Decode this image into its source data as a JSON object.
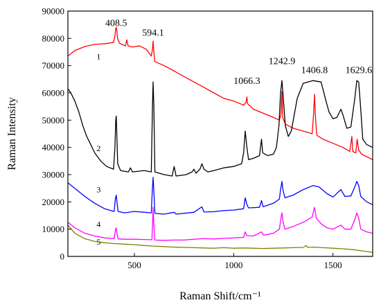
{
  "chart_data": {
    "type": "line",
    "title": "",
    "xlabel": "Raman Shift/cm⁻¹",
    "ylabel": "Raman Intensity",
    "xlim": [
      165,
      1700
    ],
    "ylim": [
      0,
      90000
    ],
    "x_ticks": [
      500,
      1000,
      1500
    ],
    "x_tick_labels": [
      "500",
      "1000",
      "1500"
    ],
    "y_ticks": [
      0,
      10000,
      20000,
      30000,
      40000,
      50000,
      60000,
      70000,
      80000,
      90000
    ],
    "y_tick_labels": [
      "0",
      "10000",
      "20000",
      "30000",
      "40000",
      "50000",
      "60000",
      "70000",
      "80000",
      "90000"
    ],
    "grid": false,
    "legend": "none",
    "peak_labels": [
      {
        "text": "408.5",
        "x": 408.5,
        "y": 84500
      },
      {
        "text": "594.1",
        "x": 594.1,
        "y": 81000
      },
      {
        "text": "1066.3",
        "x": 1066.3,
        "y": 63300
      },
      {
        "text": "1242.9",
        "x": 1242.9,
        "y": 70500
      },
      {
        "text": "1406.8",
        "x": 1406.8,
        "y": 67200
      },
      {
        "text": "1629.6",
        "x": 1629.6,
        "y": 67200
      }
    ],
    "series": [
      {
        "label": "1",
        "color": "#ff0000",
        "label_pos": {
          "x": 320,
          "y": 72300
        },
        "points": [
          [
            165,
            73500
          ],
          [
            200,
            75500
          ],
          [
            250,
            77000
          ],
          [
            300,
            77800
          ],
          [
            350,
            78000
          ],
          [
            395,
            78500
          ],
          [
            402,
            81000
          ],
          [
            406,
            83500
          ],
          [
            408.5,
            84000
          ],
          [
            411,
            83000
          ],
          [
            415,
            80000
          ],
          [
            425,
            78200
          ],
          [
            455,
            77200
          ],
          [
            462,
            79500
          ],
          [
            468,
            77200
          ],
          [
            490,
            76800
          ],
          [
            525,
            77200
          ],
          [
            560,
            76000
          ],
          [
            585,
            73500
          ],
          [
            591,
            76000
          ],
          [
            594.1,
            79000
          ],
          [
            597,
            76000
          ],
          [
            602,
            71500
          ],
          [
            650,
            70000
          ],
          [
            700,
            68000
          ],
          [
            750,
            66000
          ],
          [
            800,
            64000
          ],
          [
            850,
            62000
          ],
          [
            900,
            60000
          ],
          [
            950,
            58000
          ],
          [
            1000,
            57000
          ],
          [
            1050,
            55500
          ],
          [
            1062,
            56500
          ],
          [
            1066.3,
            58500
          ],
          [
            1070,
            56000
          ],
          [
            1100,
            54000
          ],
          [
            1150,
            52500
          ],
          [
            1200,
            51000
          ],
          [
            1230,
            50000
          ],
          [
            1238,
            52000
          ],
          [
            1242.9,
            60500
          ],
          [
            1247,
            51000
          ],
          [
            1260,
            48500
          ],
          [
            1300,
            47000
          ],
          [
            1350,
            46000
          ],
          [
            1395,
            45000
          ],
          [
            1402,
            52000
          ],
          [
            1406.8,
            59500
          ],
          [
            1411,
            52000
          ],
          [
            1418,
            44500
          ],
          [
            1450,
            43000
          ],
          [
            1500,
            41500
          ],
          [
            1550,
            40000
          ],
          [
            1585,
            38500
          ],
          [
            1595,
            44000
          ],
          [
            1600,
            38500
          ],
          [
            1615,
            38000
          ],
          [
            1622,
            43000
          ],
          [
            1629.6,
            39000
          ],
          [
            1645,
            37500
          ],
          [
            1700,
            35500
          ]
        ]
      },
      {
        "label": "2",
        "color": "#000000",
        "label_pos": {
          "x": 320,
          "y": 38600
        },
        "points": [
          [
            165,
            61500
          ],
          [
            180,
            60000
          ],
          [
            200,
            57000
          ],
          [
            220,
            53000
          ],
          [
            240,
            48000
          ],
          [
            260,
            44000
          ],
          [
            280,
            41000
          ],
          [
            300,
            38000
          ],
          [
            330,
            35000
          ],
          [
            360,
            33000
          ],
          [
            395,
            32000
          ],
          [
            402,
            40000
          ],
          [
            406,
            50000
          ],
          [
            408.5,
            51500
          ],
          [
            411,
            46000
          ],
          [
            416,
            34000
          ],
          [
            430,
            31500
          ],
          [
            470,
            31000
          ],
          [
            480,
            32500
          ],
          [
            490,
            31000
          ],
          [
            550,
            31500
          ],
          [
            585,
            31000
          ],
          [
            591,
            55000
          ],
          [
            594.1,
            64000
          ],
          [
            598,
            55000
          ],
          [
            603,
            31000
          ],
          [
            650,
            30000
          ],
          [
            690,
            29500
          ],
          [
            700,
            33000
          ],
          [
            710,
            29500
          ],
          [
            760,
            30000
          ],
          [
            790,
            31000
          ],
          [
            800,
            32000
          ],
          [
            810,
            30500
          ],
          [
            830,
            32000
          ],
          [
            840,
            34000
          ],
          [
            850,
            32000
          ],
          [
            870,
            31000
          ],
          [
            900,
            31500
          ],
          [
            950,
            32500
          ],
          [
            1000,
            33000
          ],
          [
            1040,
            34000
          ],
          [
            1050,
            38000
          ],
          [
            1058,
            46000
          ],
          [
            1066.3,
            40000
          ],
          [
            1075,
            35500
          ],
          [
            1100,
            36000
          ],
          [
            1130,
            37000
          ],
          [
            1140,
            43000
          ],
          [
            1146,
            38000
          ],
          [
            1170,
            37000
          ],
          [
            1200,
            37500
          ],
          [
            1215,
            40000
          ],
          [
            1228,
            48000
          ],
          [
            1236,
            60000
          ],
          [
            1242.9,
            64500
          ],
          [
            1248,
            60000
          ],
          [
            1260,
            48000
          ],
          [
            1275,
            44000
          ],
          [
            1290,
            46000
          ],
          [
            1320,
            58000
          ],
          [
            1350,
            63500
          ],
          [
            1400,
            64500
          ],
          [
            1440,
            64000
          ],
          [
            1465,
            57000
          ],
          [
            1480,
            53000
          ],
          [
            1500,
            50500
          ],
          [
            1520,
            51000
          ],
          [
            1540,
            54000
          ],
          [
            1550,
            52000
          ],
          [
            1570,
            47000
          ],
          [
            1590,
            47500
          ],
          [
            1610,
            58000
          ],
          [
            1620,
            64500
          ],
          [
            1629.6,
            64000
          ],
          [
            1638,
            56000
          ],
          [
            1650,
            43000
          ],
          [
            1670,
            41000
          ],
          [
            1700,
            40000
          ]
        ]
      },
      {
        "label": "3",
        "color": "#0000ff",
        "label_pos": {
          "x": 320,
          "y": 23500
        },
        "points": [
          [
            165,
            27000
          ],
          [
            200,
            25000
          ],
          [
            250,
            22000
          ],
          [
            300,
            19500
          ],
          [
            350,
            17500
          ],
          [
            398,
            16500
          ],
          [
            404,
            21000
          ],
          [
            408.5,
            22500
          ],
          [
            412,
            20000
          ],
          [
            418,
            16500
          ],
          [
            450,
            16000
          ],
          [
            500,
            16500
          ],
          [
            550,
            16200
          ],
          [
            585,
            16000
          ],
          [
            590,
            24000
          ],
          [
            594.1,
            29000
          ],
          [
            598,
            24000
          ],
          [
            603,
            15800
          ],
          [
            650,
            15500
          ],
          [
            700,
            16200
          ],
          [
            710,
            15500
          ],
          [
            800,
            16200
          ],
          [
            840,
            18200
          ],
          [
            850,
            16300
          ],
          [
            900,
            16400
          ],
          [
            950,
            16800
          ],
          [
            1000,
            17000
          ],
          [
            1050,
            17500
          ],
          [
            1058,
            21500
          ],
          [
            1066.3,
            19000
          ],
          [
            1075,
            17800
          ],
          [
            1130,
            18000
          ],
          [
            1140,
            20500
          ],
          [
            1148,
            18200
          ],
          [
            1200,
            19500
          ],
          [
            1230,
            21000
          ],
          [
            1236,
            24500
          ],
          [
            1242.9,
            27500
          ],
          [
            1248,
            24500
          ],
          [
            1258,
            21500
          ],
          [
            1300,
            22500
          ],
          [
            1350,
            24500
          ],
          [
            1400,
            26000
          ],
          [
            1430,
            25500
          ],
          [
            1470,
            23000
          ],
          [
            1500,
            21800
          ],
          [
            1540,
            24500
          ],
          [
            1560,
            22000
          ],
          [
            1590,
            22200
          ],
          [
            1610,
            25500
          ],
          [
            1620,
            27500
          ],
          [
            1629.6,
            26000
          ],
          [
            1640,
            22000
          ],
          [
            1670,
            20000
          ],
          [
            1700,
            19000
          ]
        ]
      },
      {
        "label": "4",
        "color": "#ff00ff",
        "label_pos": {
          "x": 320,
          "y": 10800
        },
        "points": [
          [
            165,
            12500
          ],
          [
            200,
            10500
          ],
          [
            250,
            8500
          ],
          [
            300,
            7500
          ],
          [
            350,
            6800
          ],
          [
            398,
            6500
          ],
          [
            404,
            9500
          ],
          [
            408.5,
            10500
          ],
          [
            412,
            8500
          ],
          [
            418,
            6400
          ],
          [
            450,
            6300
          ],
          [
            500,
            6300
          ],
          [
            550,
            6200
          ],
          [
            588,
            6100
          ],
          [
            592,
            13000
          ],
          [
            594.1,
            18000
          ],
          [
            597,
            13000
          ],
          [
            602,
            6000
          ],
          [
            650,
            5900
          ],
          [
            700,
            6000
          ],
          [
            750,
            6000
          ],
          [
            800,
            6300
          ],
          [
            850,
            6500
          ],
          [
            900,
            6400
          ],
          [
            950,
            6600
          ],
          [
            1000,
            6800
          ],
          [
            1050,
            7000
          ],
          [
            1058,
            9000
          ],
          [
            1066.3,
            7600
          ],
          [
            1100,
            7500
          ],
          [
            1140,
            9000
          ],
          [
            1150,
            7800
          ],
          [
            1200,
            8500
          ],
          [
            1230,
            10000
          ],
          [
            1238,
            14000
          ],
          [
            1242.9,
            16000
          ],
          [
            1248,
            13000
          ],
          [
            1258,
            10000
          ],
          [
            1300,
            11000
          ],
          [
            1350,
            12500
          ],
          [
            1395,
            14500
          ],
          [
            1406.8,
            18000
          ],
          [
            1416,
            14000
          ],
          [
            1440,
            12000
          ],
          [
            1470,
            10500
          ],
          [
            1500,
            10000
          ],
          [
            1540,
            11500
          ],
          [
            1560,
            10000
          ],
          [
            1590,
            10000
          ],
          [
            1610,
            13500
          ],
          [
            1620,
            16000
          ],
          [
            1629.6,
            14000
          ],
          [
            1640,
            10000
          ],
          [
            1670,
            9000
          ],
          [
            1700,
            8500
          ]
        ]
      },
      {
        "label": "5",
        "color": "#808000",
        "label_pos": {
          "x": 320,
          "y": 4300
        },
        "points": [
          [
            165,
            11500
          ],
          [
            200,
            8500
          ],
          [
            250,
            6500
          ],
          [
            300,
            5500
          ],
          [
            350,
            5000
          ],
          [
            400,
            4700
          ],
          [
            450,
            4500
          ],
          [
            500,
            4300
          ],
          [
            550,
            4000
          ],
          [
            600,
            3800
          ],
          [
            650,
            3600
          ],
          [
            700,
            3400
          ],
          [
            750,
            3300
          ],
          [
            800,
            3200
          ],
          [
            850,
            3100
          ],
          [
            900,
            3000
          ],
          [
            950,
            3200
          ],
          [
            1000,
            3000
          ],
          [
            1050,
            3100
          ],
          [
            1100,
            3000
          ],
          [
            1150,
            2900
          ],
          [
            1200,
            3000
          ],
          [
            1250,
            3100
          ],
          [
            1300,
            3200
          ],
          [
            1350,
            3300
          ],
          [
            1365,
            4000
          ],
          [
            1372,
            3300
          ],
          [
            1400,
            3400
          ],
          [
            1450,
            3200
          ],
          [
            1500,
            3000
          ],
          [
            1550,
            2800
          ],
          [
            1600,
            2500
          ],
          [
            1650,
            2000
          ],
          [
            1700,
            1500
          ]
        ]
      }
    ]
  }
}
